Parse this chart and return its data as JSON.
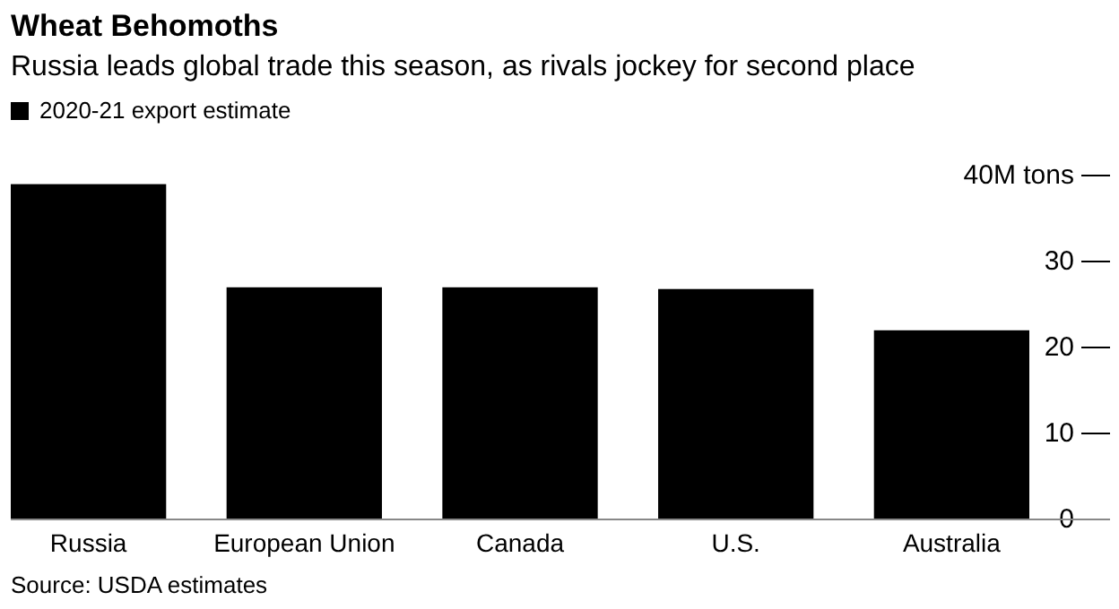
{
  "chart_data": {
    "type": "bar",
    "title": "Wheat Behomoths",
    "subtitle": "Russia leads global trade this season, as rivals jockey for second place",
    "categories": [
      "Russia",
      "European Union",
      "Canada",
      "U.S.",
      "Australia"
    ],
    "series": [
      {
        "name": "2020-21 export estimate",
        "color": "#000000",
        "values": [
          39,
          27,
          27,
          26.8,
          22
        ]
      }
    ],
    "ylim": [
      0,
      40
    ],
    "yticks": [
      0,
      10,
      20,
      30,
      {
        "value": 40,
        "label": "40M tons"
      }
    ],
    "legend": "top left",
    "annotations": [
      "Source: USDA estimates"
    ]
  }
}
